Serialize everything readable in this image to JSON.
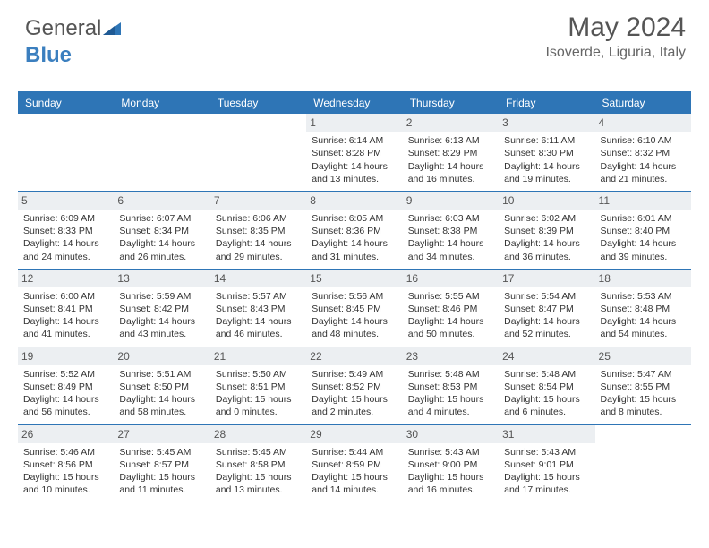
{
  "brand": {
    "text1": "General",
    "text2": "Blue"
  },
  "header": {
    "title": "May 2024",
    "subtitle": "Isoverde, Liguria, Italy"
  },
  "colors": {
    "accent": "#2e75b6",
    "daynum_bg": "#eceff2",
    "text": "#333333",
    "background": "#ffffff"
  },
  "dow": [
    "Sunday",
    "Monday",
    "Tuesday",
    "Wednesday",
    "Thursday",
    "Friday",
    "Saturday"
  ],
  "weeks": [
    [
      {
        "day": "",
        "sunrise": "",
        "sunset": "",
        "daylight1": "",
        "daylight2": ""
      },
      {
        "day": "",
        "sunrise": "",
        "sunset": "",
        "daylight1": "",
        "daylight2": ""
      },
      {
        "day": "",
        "sunrise": "",
        "sunset": "",
        "daylight1": "",
        "daylight2": ""
      },
      {
        "day": "1",
        "sunrise": "Sunrise: 6:14 AM",
        "sunset": "Sunset: 8:28 PM",
        "daylight1": "Daylight: 14 hours",
        "daylight2": "and 13 minutes."
      },
      {
        "day": "2",
        "sunrise": "Sunrise: 6:13 AM",
        "sunset": "Sunset: 8:29 PM",
        "daylight1": "Daylight: 14 hours",
        "daylight2": "and 16 minutes."
      },
      {
        "day": "3",
        "sunrise": "Sunrise: 6:11 AM",
        "sunset": "Sunset: 8:30 PM",
        "daylight1": "Daylight: 14 hours",
        "daylight2": "and 19 minutes."
      },
      {
        "day": "4",
        "sunrise": "Sunrise: 6:10 AM",
        "sunset": "Sunset: 8:32 PM",
        "daylight1": "Daylight: 14 hours",
        "daylight2": "and 21 minutes."
      }
    ],
    [
      {
        "day": "5",
        "sunrise": "Sunrise: 6:09 AM",
        "sunset": "Sunset: 8:33 PM",
        "daylight1": "Daylight: 14 hours",
        "daylight2": "and 24 minutes."
      },
      {
        "day": "6",
        "sunrise": "Sunrise: 6:07 AM",
        "sunset": "Sunset: 8:34 PM",
        "daylight1": "Daylight: 14 hours",
        "daylight2": "and 26 minutes."
      },
      {
        "day": "7",
        "sunrise": "Sunrise: 6:06 AM",
        "sunset": "Sunset: 8:35 PM",
        "daylight1": "Daylight: 14 hours",
        "daylight2": "and 29 minutes."
      },
      {
        "day": "8",
        "sunrise": "Sunrise: 6:05 AM",
        "sunset": "Sunset: 8:36 PM",
        "daylight1": "Daylight: 14 hours",
        "daylight2": "and 31 minutes."
      },
      {
        "day": "9",
        "sunrise": "Sunrise: 6:03 AM",
        "sunset": "Sunset: 8:38 PM",
        "daylight1": "Daylight: 14 hours",
        "daylight2": "and 34 minutes."
      },
      {
        "day": "10",
        "sunrise": "Sunrise: 6:02 AM",
        "sunset": "Sunset: 8:39 PM",
        "daylight1": "Daylight: 14 hours",
        "daylight2": "and 36 minutes."
      },
      {
        "day": "11",
        "sunrise": "Sunrise: 6:01 AM",
        "sunset": "Sunset: 8:40 PM",
        "daylight1": "Daylight: 14 hours",
        "daylight2": "and 39 minutes."
      }
    ],
    [
      {
        "day": "12",
        "sunrise": "Sunrise: 6:00 AM",
        "sunset": "Sunset: 8:41 PM",
        "daylight1": "Daylight: 14 hours",
        "daylight2": "and 41 minutes."
      },
      {
        "day": "13",
        "sunrise": "Sunrise: 5:59 AM",
        "sunset": "Sunset: 8:42 PM",
        "daylight1": "Daylight: 14 hours",
        "daylight2": "and 43 minutes."
      },
      {
        "day": "14",
        "sunrise": "Sunrise: 5:57 AM",
        "sunset": "Sunset: 8:43 PM",
        "daylight1": "Daylight: 14 hours",
        "daylight2": "and 46 minutes."
      },
      {
        "day": "15",
        "sunrise": "Sunrise: 5:56 AM",
        "sunset": "Sunset: 8:45 PM",
        "daylight1": "Daylight: 14 hours",
        "daylight2": "and 48 minutes."
      },
      {
        "day": "16",
        "sunrise": "Sunrise: 5:55 AM",
        "sunset": "Sunset: 8:46 PM",
        "daylight1": "Daylight: 14 hours",
        "daylight2": "and 50 minutes."
      },
      {
        "day": "17",
        "sunrise": "Sunrise: 5:54 AM",
        "sunset": "Sunset: 8:47 PM",
        "daylight1": "Daylight: 14 hours",
        "daylight2": "and 52 minutes."
      },
      {
        "day": "18",
        "sunrise": "Sunrise: 5:53 AM",
        "sunset": "Sunset: 8:48 PM",
        "daylight1": "Daylight: 14 hours",
        "daylight2": "and 54 minutes."
      }
    ],
    [
      {
        "day": "19",
        "sunrise": "Sunrise: 5:52 AM",
        "sunset": "Sunset: 8:49 PM",
        "daylight1": "Daylight: 14 hours",
        "daylight2": "and 56 minutes."
      },
      {
        "day": "20",
        "sunrise": "Sunrise: 5:51 AM",
        "sunset": "Sunset: 8:50 PM",
        "daylight1": "Daylight: 14 hours",
        "daylight2": "and 58 minutes."
      },
      {
        "day": "21",
        "sunrise": "Sunrise: 5:50 AM",
        "sunset": "Sunset: 8:51 PM",
        "daylight1": "Daylight: 15 hours",
        "daylight2": "and 0 minutes."
      },
      {
        "day": "22",
        "sunrise": "Sunrise: 5:49 AM",
        "sunset": "Sunset: 8:52 PM",
        "daylight1": "Daylight: 15 hours",
        "daylight2": "and 2 minutes."
      },
      {
        "day": "23",
        "sunrise": "Sunrise: 5:48 AM",
        "sunset": "Sunset: 8:53 PM",
        "daylight1": "Daylight: 15 hours",
        "daylight2": "and 4 minutes."
      },
      {
        "day": "24",
        "sunrise": "Sunrise: 5:48 AM",
        "sunset": "Sunset: 8:54 PM",
        "daylight1": "Daylight: 15 hours",
        "daylight2": "and 6 minutes."
      },
      {
        "day": "25",
        "sunrise": "Sunrise: 5:47 AM",
        "sunset": "Sunset: 8:55 PM",
        "daylight1": "Daylight: 15 hours",
        "daylight2": "and 8 minutes."
      }
    ],
    [
      {
        "day": "26",
        "sunrise": "Sunrise: 5:46 AM",
        "sunset": "Sunset: 8:56 PM",
        "daylight1": "Daylight: 15 hours",
        "daylight2": "and 10 minutes."
      },
      {
        "day": "27",
        "sunrise": "Sunrise: 5:45 AM",
        "sunset": "Sunset: 8:57 PM",
        "daylight1": "Daylight: 15 hours",
        "daylight2": "and 11 minutes."
      },
      {
        "day": "28",
        "sunrise": "Sunrise: 5:45 AM",
        "sunset": "Sunset: 8:58 PM",
        "daylight1": "Daylight: 15 hours",
        "daylight2": "and 13 minutes."
      },
      {
        "day": "29",
        "sunrise": "Sunrise: 5:44 AM",
        "sunset": "Sunset: 8:59 PM",
        "daylight1": "Daylight: 15 hours",
        "daylight2": "and 14 minutes."
      },
      {
        "day": "30",
        "sunrise": "Sunrise: 5:43 AM",
        "sunset": "Sunset: 9:00 PM",
        "daylight1": "Daylight: 15 hours",
        "daylight2": "and 16 minutes."
      },
      {
        "day": "31",
        "sunrise": "Sunrise: 5:43 AM",
        "sunset": "Sunset: 9:01 PM",
        "daylight1": "Daylight: 15 hours",
        "daylight2": "and 17 minutes."
      },
      {
        "day": "",
        "sunrise": "",
        "sunset": "",
        "daylight1": "",
        "daylight2": ""
      }
    ]
  ]
}
